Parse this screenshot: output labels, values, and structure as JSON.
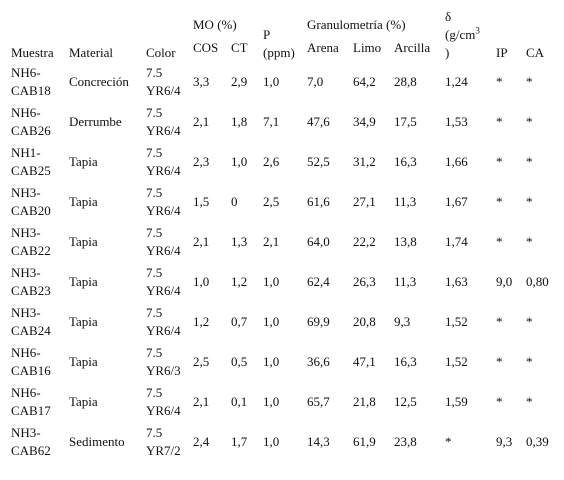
{
  "headers": {
    "muestra": "Muestra",
    "material": "Material",
    "color": "Color",
    "mo_group": "MO (%)",
    "cos": "COS",
    "ct": "CT",
    "p_label": "P",
    "p_unit": "(ppm)",
    "granulometria_group": "Granulometría (%)",
    "arena": "Arena",
    "limo": "Limo",
    "arcilla": "Arcilla",
    "delta_symbol": "δ",
    "delta_unit_pre": "(g/cm",
    "delta_unit_sup": "3",
    "delta_unit_post": ")",
    "ip": "IP",
    "ca": "CA"
  },
  "rows": [
    {
      "muestra_a": "NH6-",
      "muestra_b": "CAB18",
      "material": "Concreción",
      "color_a": "7.5",
      "color_b": "YR6/4",
      "cos": "3,3",
      "ct": "2,9",
      "p": "1,0",
      "arena": "7,0",
      "limo": "64,2",
      "arcilla": "28,8",
      "delta": "1,24",
      "ip": "*",
      "ca": "*"
    },
    {
      "muestra_a": "NH6-",
      "muestra_b": "CAB26",
      "material": "Derrumbe",
      "color_a": "7.5",
      "color_b": "YR6/4",
      "cos": "2,1",
      "ct": "1,8",
      "p": "7,1",
      "arena": "47,6",
      "limo": "34,9",
      "arcilla": "17,5",
      "delta": "1,53",
      "ip": "*",
      "ca": "*"
    },
    {
      "muestra_a": "NH1-",
      "muestra_b": "CAB25",
      "material": "Tapia",
      "color_a": "7.5",
      "color_b": "YR6/4",
      "cos": "2,3",
      "ct": "1,0",
      "p": "2,6",
      "arena": "52,5",
      "limo": "31,2",
      "arcilla": "16,3",
      "delta": "1,66",
      "ip": "*",
      "ca": "*"
    },
    {
      "muestra_a": "NH3-",
      "muestra_b": "CAB20",
      "material": "Tapia",
      "color_a": "7.5",
      "color_b": "YR6/4",
      "cos": "1,5",
      "ct": "0",
      "p": "2,5",
      "arena": "61,6",
      "limo": "27,1",
      "arcilla": "11,3",
      "delta": "1,67",
      "ip": "*",
      "ca": "*"
    },
    {
      "muestra_a": "NH3-",
      "muestra_b": "CAB22",
      "material": "Tapia",
      "color_a": "7.5",
      "color_b": "YR6/4",
      "cos": "2,1",
      "ct": "1,3",
      "p": "2,1",
      "arena": "64,0",
      "limo": "22,2",
      "arcilla": "13,8",
      "delta": "1,74",
      "ip": "*",
      "ca": "*"
    },
    {
      "muestra_a": "NH3-",
      "muestra_b": "CAB23",
      "material": "Tapia",
      "color_a": "7.5",
      "color_b": "YR6/4",
      "cos": "1,0",
      "ct": "1,2",
      "p": "1,0",
      "arena": "62,4",
      "limo": "26,3",
      "arcilla": "11,3",
      "delta": "1,63",
      "ip": "9,0",
      "ca": "0,80"
    },
    {
      "muestra_a": "NH3-",
      "muestra_b": "CAB24",
      "material": "Tapia",
      "color_a": "7.5",
      "color_b": "YR6/4",
      "cos": "1,2",
      "ct": "0,7",
      "p": "1,0",
      "arena": "69,9",
      "limo": "20,8",
      "arcilla": "9,3",
      "delta": "1,52",
      "ip": "*",
      "ca": "*"
    },
    {
      "muestra_a": "NH6-",
      "muestra_b": "CAB16",
      "material": "Tapia",
      "color_a": "7.5",
      "color_b": "YR6/3",
      "cos": "2,5",
      "ct": "0,5",
      "p": "1,0",
      "arena": "36,6",
      "limo": "47,1",
      "arcilla": "16,3",
      "delta": "1,52",
      "ip": "*",
      "ca": "*"
    },
    {
      "muestra_a": "NH6-",
      "muestra_b": "CAB17",
      "material": "Tapia",
      "color_a": "7.5",
      "color_b": "YR6/4",
      "cos": "2,1",
      "ct": "0,1",
      "p": "1,0",
      "arena": "65,7",
      "limo": "21,8",
      "arcilla": "12,5",
      "delta": "1,59",
      "ip": "*",
      "ca": "*"
    },
    {
      "muestra_a": "NH3-",
      "muestra_b": "CAB62",
      "material": "Sedimento",
      "color_a": "7.5",
      "color_b": "YR7/2",
      "cos": "2,4",
      "ct": "1,7",
      "p": "1,0",
      "arena": "14,3",
      "limo": "61,9",
      "arcilla": "23,8",
      "delta": "*",
      "ip": "9,3",
      "ca": "0,39"
    }
  ]
}
